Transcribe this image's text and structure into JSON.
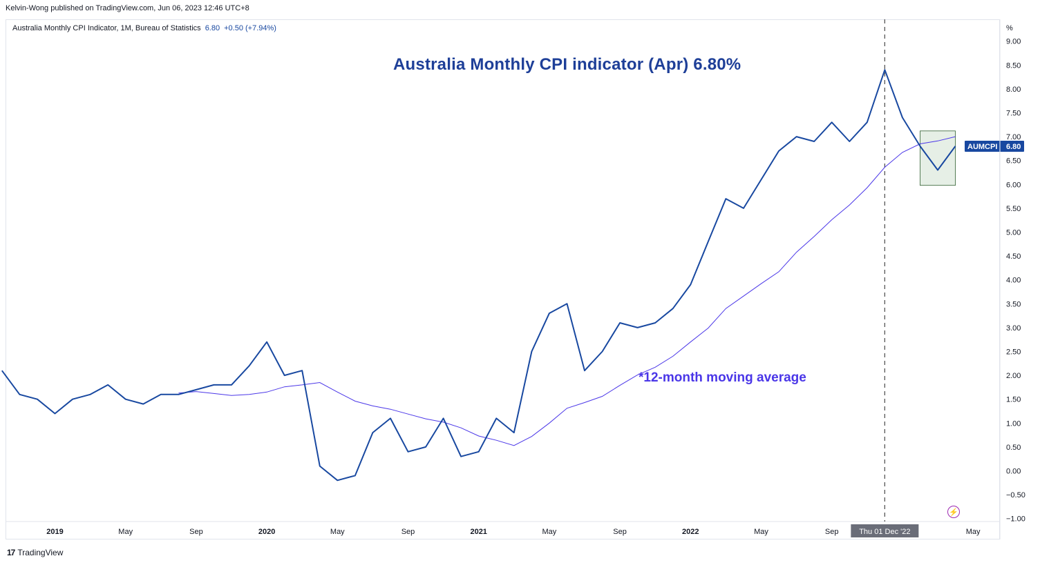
{
  "publisher": "Kelvin-Wong published on TradingView.com, Jun 06, 2023 12:46 UTC+8",
  "series_title": {
    "label": "Australia Monthly CPI Indicator, 1M, Bureau of Statistics",
    "value": "6.80",
    "change": "+0.50 (+7.94%)"
  },
  "footer": {
    "logo": "17",
    "brand": "TradingView"
  },
  "colors": {
    "cpi_line": "#1848a0",
    "ma_line": "#4a36e8",
    "crosshair": "#555555",
    "box_fill": "#e6efe6",
    "price_tag": "#1848a0"
  },
  "chart_data": {
    "type": "line",
    "title": "Australia Monthly CPI indicator (Apr) 6.80%",
    "annotation": "*12-month moving average",
    "y_unit_label": "%",
    "ylim": [
      -1.0,
      9.4
    ],
    "y_ticks": [
      "9.00",
      "8.50",
      "8.00",
      "7.50",
      "7.00",
      "6.50",
      "6.00",
      "5.50",
      "5.00",
      "4.50",
      "4.00",
      "3.50",
      "3.00",
      "2.50",
      "2.00",
      "1.50",
      "1.00",
      "0.50",
      "0.00",
      "−0.50",
      "−1.00"
    ],
    "x_ticks": [
      {
        "label": "2019",
        "month_index": 0,
        "bold": true
      },
      {
        "label": "May",
        "month_index": 4,
        "bold": false
      },
      {
        "label": "Sep",
        "month_index": 8,
        "bold": false
      },
      {
        "label": "2020",
        "month_index": 12,
        "bold": true
      },
      {
        "label": "May",
        "month_index": 16,
        "bold": false
      },
      {
        "label": "Sep",
        "month_index": 20,
        "bold": false
      },
      {
        "label": "2021",
        "month_index": 24,
        "bold": true
      },
      {
        "label": "May",
        "month_index": 28,
        "bold": false
      },
      {
        "label": "Sep",
        "month_index": 32,
        "bold": false
      },
      {
        "label": "2022",
        "month_index": 36,
        "bold": true
      },
      {
        "label": "May",
        "month_index": 40,
        "bold": false
      },
      {
        "label": "Sep",
        "month_index": 44,
        "bold": false
      },
      {
        "label": "May",
        "month_index": 52,
        "bold": false
      }
    ],
    "crosshair": {
      "label": "Thu 01 Dec '22",
      "month_index": 47
    },
    "highlight_box": {
      "month_start": 49.0,
      "month_end": 51.0,
      "y_top": 7.12,
      "y_bottom": 5.98
    },
    "series": [
      {
        "name": "AUMCPI",
        "start_month_index": -3,
        "values": [
          2.1,
          1.6,
          1.5,
          1.2,
          1.5,
          1.6,
          1.8,
          1.5,
          1.4,
          1.6,
          1.6,
          1.7,
          1.8,
          1.8,
          2.2,
          2.7,
          2.0,
          2.1,
          0.1,
          -0.2,
          -0.1,
          0.8,
          1.1,
          0.4,
          0.5,
          1.1,
          0.3,
          0.4,
          1.1,
          0.8,
          2.5,
          3.3,
          3.5,
          2.1,
          2.5,
          3.1,
          3.0,
          3.1,
          3.4,
          3.9,
          4.8,
          5.7,
          5.5,
          6.1,
          6.7,
          7.0,
          6.9,
          7.3,
          6.9,
          7.3,
          8.4,
          7.4,
          6.8,
          6.3,
          6.8
        ]
      },
      {
        "name": "12-month moving average",
        "start_month_index": 7,
        "values": [
          1.63,
          1.66,
          1.62,
          1.58,
          1.6,
          1.65,
          1.76,
          1.8,
          1.85,
          1.65,
          1.46,
          1.36,
          1.29,
          1.19,
          1.09,
          1.02,
          0.9,
          0.73,
          0.64,
          0.53,
          0.72,
          1.0,
          1.31,
          1.43,
          1.56,
          1.79,
          2.01,
          2.17,
          2.4,
          2.7,
          2.99,
          3.4,
          3.66,
          3.92,
          4.17,
          4.58,
          4.91,
          5.26,
          5.57,
          5.93,
          6.36,
          6.67,
          6.85,
          6.91,
          7.0
        ]
      }
    ],
    "last_value_tag": {
      "name": "AUMCPI",
      "value": "6.80"
    }
  }
}
